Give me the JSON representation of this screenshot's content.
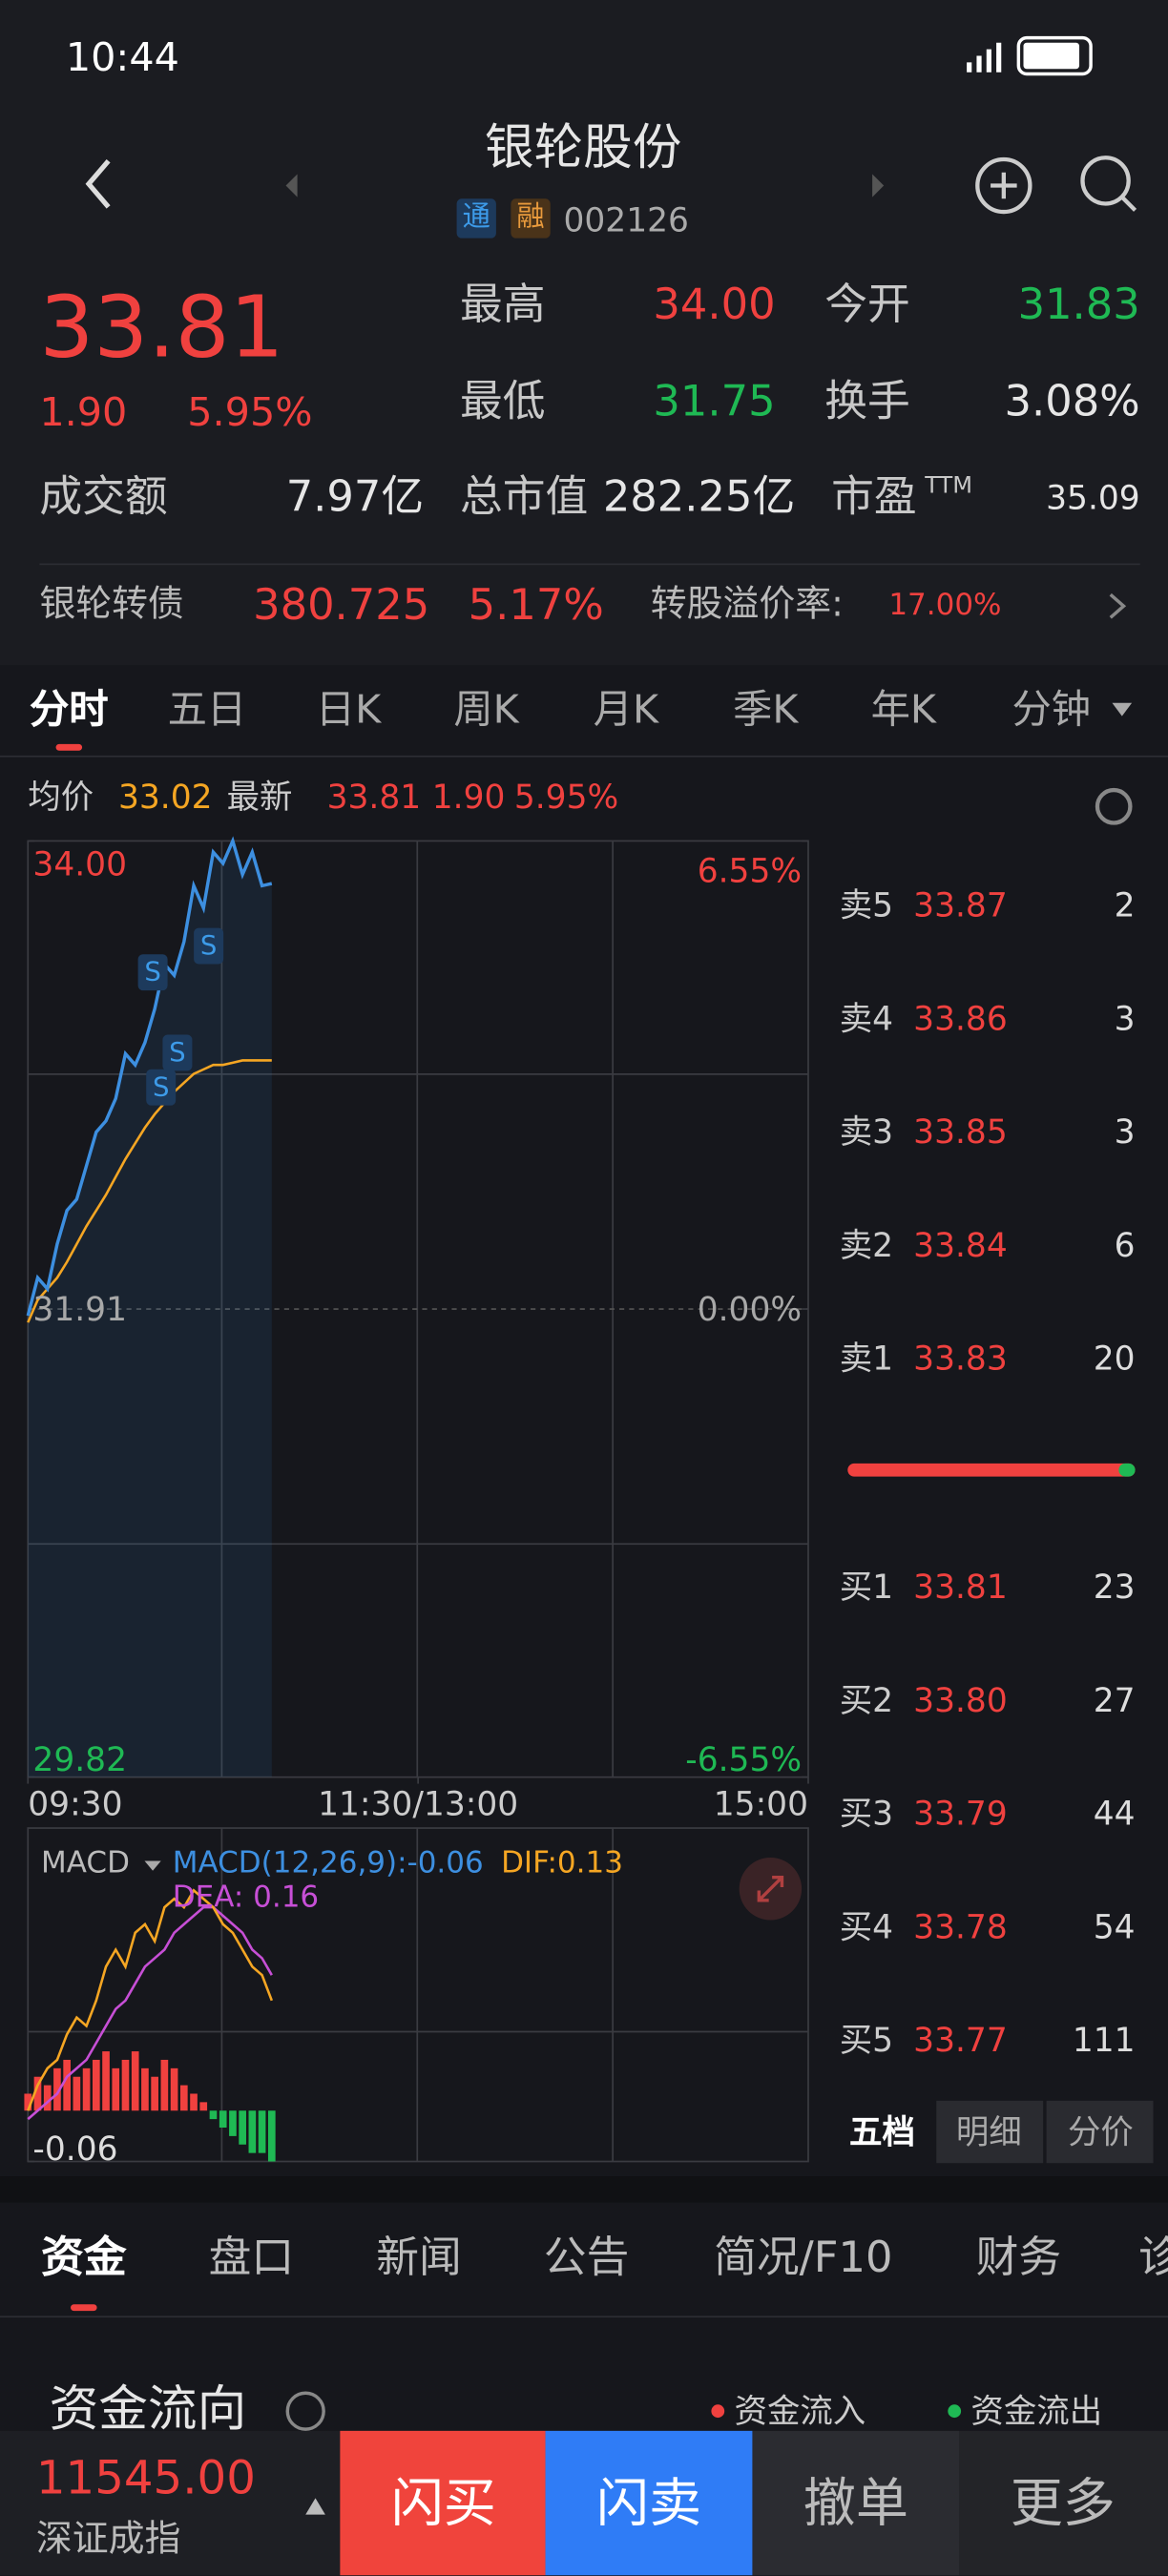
{
  "status_bar": {
    "time": "10:44"
  },
  "header": {
    "title": "银轮股份",
    "tags": [
      "通",
      "融"
    ],
    "code": "002126"
  },
  "quote": {
    "price": "33.81",
    "change": "1.90",
    "change_pct": "5.95%",
    "high_label": "最高",
    "high": "34.00",
    "open_label": "今开",
    "open": "31.83",
    "low_label": "最低",
    "low": "31.75",
    "turnover_label": "换手",
    "turnover": "3.08%",
    "amount_label": "成交额",
    "amount": "7.97亿",
    "market_cap_label": "总市值",
    "market_cap": "282.25亿",
    "pe_label": "市盈",
    "pe_sup": "TTM",
    "pe": "35.09"
  },
  "bond": {
    "name": "银轮转债",
    "price": "380.725",
    "change_pct": "5.17%",
    "premium_label": "转股溢价率:",
    "premium": "17.00%"
  },
  "tabs": [
    "分时",
    "五日",
    "日K",
    "周K",
    "月K",
    "季K",
    "年K",
    "分钟"
  ],
  "legend": {
    "avg": "33.02",
    "latest": "33.81",
    "change": "1.90",
    "change_pct": "5.95%"
  },
  "sell_marks": [
    "S",
    "S",
    "S",
    "S"
  ],
  "chart_data": [
    {
      "type": "line",
      "x": [
        0,
        3,
        6,
        9,
        12,
        15,
        18,
        21,
        24,
        27,
        30,
        33,
        36,
        39,
        42,
        45,
        48,
        51,
        54,
        57,
        60,
        63,
        66,
        69,
        72,
        75
      ],
      "xlim": [
        0,
        240
      ],
      "xticks": [
        {
          "value": 0,
          "label": "09:30"
        },
        {
          "value": 120,
          "label": "11:30/13:00"
        },
        {
          "value": 240,
          "label": "15:00"
        }
      ],
      "ylim": [
        29.82,
        34.0
      ],
      "yticks": [
        29.82,
        31.91,
        {
          "value": 34,
          "label": "34.00"
        }
      ],
      "y2lim": [
        -6.55,
        6.55
      ],
      "y2ticks": [
        {
          "value": -6.55,
          "label": "-6.55%"
        },
        {
          "value": 0,
          "label": "0.00%"
        },
        {
          "value": 6.55,
          "label": "6.55%"
        }
      ],
      "series": [
        {
          "name": "最新",
          "color": "#3d8fe0",
          "values": [
            31.88,
            32.05,
            32.0,
            32.2,
            32.35,
            32.4,
            32.55,
            32.7,
            32.75,
            32.85,
            33.05,
            33.0,
            33.1,
            33.25,
            33.45,
            33.4,
            33.55,
            33.8,
            33.7,
            33.95,
            33.9,
            34.0,
            33.85,
            33.95,
            33.8,
            33.81
          ]
        },
        {
          "name": "均价",
          "color": "#f5a623",
          "values": [
            31.85,
            31.95,
            32.0,
            32.05,
            32.12,
            32.2,
            32.28,
            32.35,
            32.42,
            32.5,
            32.58,
            32.65,
            32.72,
            32.78,
            32.83,
            32.88,
            32.92,
            32.96,
            32.98,
            33.0,
            33.0,
            33.01,
            33.02,
            33.02,
            33.02,
            33.02
          ]
        }
      ]
    },
    {
      "type": "macd",
      "title": "MACD",
      "indicator": "MACD(12,26,9):-0.06",
      "dif_legend": "DIF:0.13",
      "dea_legend": "DEA: 0.16",
      "x": [
        0,
        3,
        6,
        9,
        12,
        15,
        18,
        21,
        24,
        27,
        30,
        33,
        36,
        39,
        42,
        45,
        48,
        51,
        54,
        57,
        60,
        63,
        66,
        69,
        72,
        75
      ],
      "xlim": [
        0,
        240
      ],
      "ylim": [
        -0.06,
        0.32
      ],
      "yticks": [
        -0.06
      ],
      "series": [
        {
          "color": "#f5a623",
          "values": [
            0.0,
            0.03,
            0.05,
            0.06,
            0.09,
            0.11,
            0.1,
            0.13,
            0.17,
            0.19,
            0.17,
            0.21,
            0.22,
            0.2,
            0.24,
            0.25,
            0.24,
            0.26,
            0.25,
            0.24,
            0.22,
            0.21,
            0.19,
            0.17,
            0.16,
            0.13
          ]
        },
        {
          "color": "#c74fd6",
          "values": [
            -0.01,
            0.0,
            0.01,
            0.02,
            0.04,
            0.05,
            0.06,
            0.08,
            0.1,
            0.12,
            0.13,
            0.15,
            0.17,
            0.18,
            0.19,
            0.21,
            0.22,
            0.23,
            0.24,
            0.24,
            0.23,
            0.22,
            0.21,
            0.19,
            0.18,
            0.16
          ]
        }
      ],
      "histogram": [
        0.02,
        0.04,
        0.03,
        0.05,
        0.06,
        0.04,
        0.05,
        0.06,
        0.07,
        0.05,
        0.06,
        0.07,
        0.05,
        0.04,
        0.06,
        0.05,
        0.03,
        0.02,
        0.01,
        -0.01,
        -0.02,
        -0.03,
        -0.04,
        -0.05,
        -0.05,
        -0.06
      ],
      "up_color": "#f0413f",
      "down_color": "#1fb954"
    }
  ],
  "order_book": {
    "asks": [
      {
        "label": "卖5",
        "price": "33.87",
        "volume": "2"
      },
      {
        "label": "卖4",
        "price": "33.86",
        "volume": "3"
      },
      {
        "label": "卖3",
        "price": "33.85",
        "volume": "3"
      },
      {
        "label": "卖2",
        "price": "33.84",
        "volume": "6"
      },
      {
        "label": "卖1",
        "price": "33.83",
        "volume": "20"
      }
    ],
    "bids": [
      {
        "label": "买1",
        "price": "33.81",
        "volume": "23"
      },
      {
        "label": "买2",
        "price": "33.80",
        "volume": "27"
      },
      {
        "label": "买3",
        "price": "33.79",
        "volume": "44"
      },
      {
        "label": "买4",
        "price": "33.78",
        "volume": "54"
      },
      {
        "label": "买5",
        "price": "33.77",
        "volume": "111"
      }
    ],
    "tabs": [
      "五档",
      "明细",
      "分价"
    ]
  },
  "section_tabs": [
    "资金",
    "盘口",
    "新闻",
    "公告",
    "简况/F10",
    "财务",
    "诊"
  ],
  "fund_flow": {
    "title": "资金流向",
    "legend": [
      "资金流入",
      "资金流出"
    ]
  },
  "bottom_bar": {
    "index_value": "11545.00",
    "index_name": "深证成指",
    "buttons": [
      "闪买",
      "闪卖",
      "撤单",
      "更多"
    ]
  }
}
